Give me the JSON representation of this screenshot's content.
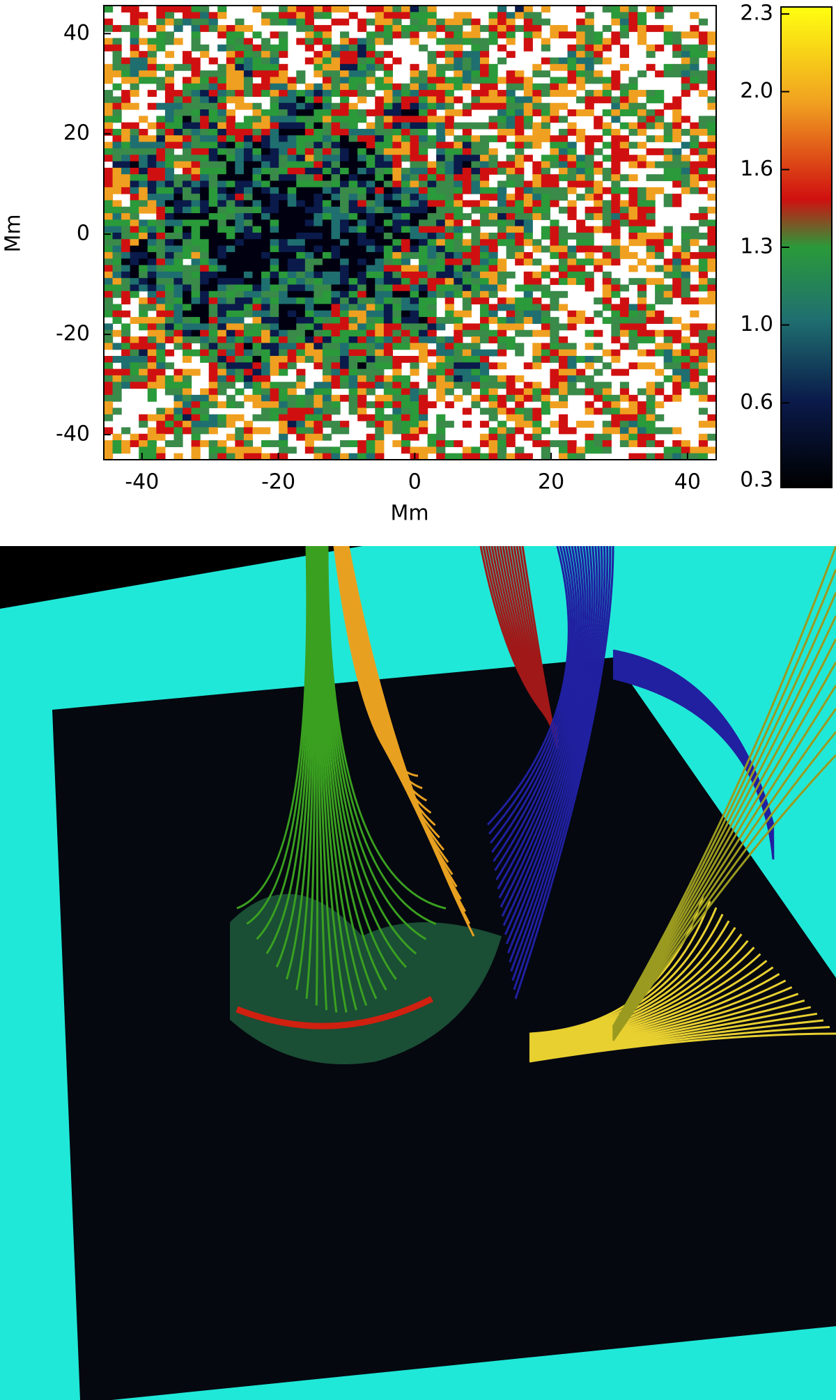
{
  "chart_data": {
    "type": "heatmap",
    "xlabel": "Mm",
    "ylabel": "Mm",
    "xlim": [
      -45.6,
      44.2
    ],
    "ylim": [
      -45,
      45.6
    ],
    "xticks": [
      -40,
      -20,
      0,
      20,
      40
    ],
    "yticks": [
      -40,
      -20,
      0,
      20,
      40
    ],
    "colorbar": {
      "lim": [
        0.27,
        2.33
      ],
      "ticks": [
        0.3,
        {
          "value": 0.633,
          "label": "0.6"
        },
        {
          "value": 0.967,
          "label": "1.0"
        },
        1.3,
        {
          "value": 1.633,
          "label": "1.6"
        },
        {
          "value": 1.967,
          "label": "2.0"
        },
        2.3
      ]
    }
  }
}
